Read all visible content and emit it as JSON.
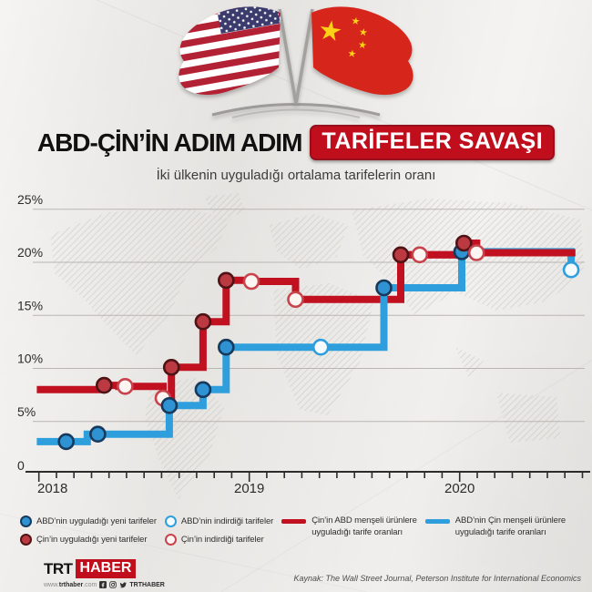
{
  "header": {
    "title_black": "ABD-ÇİN’İN ADIM ADIM",
    "title_highlight": "TARİFELER SAVAŞI",
    "subtitle": "İki ülkenin uyguladığı ortalama tarifelerin oranı",
    "accent_red": "#c00e1d"
  },
  "chart_data": {
    "type": "line",
    "subtype": "step",
    "title": "ABD-ÇİN'İN ADIM ADIM TARİFELER SAVAŞI",
    "subtitle": "İki ülkenin uyguladığı ortalama tarifelerin oranı",
    "y_unit": "%",
    "y_ticks": [
      0,
      5,
      10,
      15,
      20,
      25
    ],
    "x_ticks": [
      2018,
      2019,
      2020
    ],
    "xlim": [
      2017.99,
      2020.62
    ],
    "ylim": [
      0,
      26
    ],
    "grid": true,
    "series": [
      {
        "id": "cn",
        "name": "Çin’in ABD menşeli ürünlere uyguladığı tarife oranları",
        "color": "#c11120",
        "points": [
          [
            2017.99,
            8.0
          ],
          [
            2018.29,
            8.0
          ],
          [
            2018.29,
            8.4
          ],
          [
            2018.38,
            8.4
          ],
          [
            2018.38,
            8.3
          ],
          [
            2018.59,
            8.3
          ],
          [
            2018.59,
            7.2
          ],
          [
            2018.63,
            7.2
          ],
          [
            2018.63,
            10.1
          ],
          [
            2018.78,
            10.1
          ],
          [
            2018.78,
            14.4
          ],
          [
            2018.89,
            14.4
          ],
          [
            2018.89,
            18.3
          ],
          [
            2019.01,
            18.3
          ],
          [
            2019.01,
            18.2
          ],
          [
            2019.22,
            18.2
          ],
          [
            2019.22,
            16.5
          ],
          [
            2019.72,
            16.5
          ],
          [
            2019.72,
            20.7
          ],
          [
            2020.0,
            20.7
          ],
          [
            2020.0,
            21.8
          ],
          [
            2020.08,
            21.8
          ],
          [
            2020.08,
            20.9
          ],
          [
            2020.55,
            20.9
          ]
        ]
      },
      {
        "id": "us",
        "name": "ABD’nin Çin menşeli ürünlere uyguladığı tarife oranları",
        "color": "#2e9fdc",
        "points": [
          [
            2017.99,
            3.1
          ],
          [
            2018.23,
            3.1
          ],
          [
            2018.23,
            3.8
          ],
          [
            2018.62,
            3.8
          ],
          [
            2018.62,
            6.5
          ],
          [
            2018.78,
            6.5
          ],
          [
            2018.78,
            8.0
          ],
          [
            2018.89,
            8.0
          ],
          [
            2018.89,
            12.0
          ],
          [
            2019.64,
            12.0
          ],
          [
            2019.64,
            17.6
          ],
          [
            2020.01,
            17.6
          ],
          [
            2020.01,
            21.0
          ],
          [
            2020.53,
            21.0
          ],
          [
            2020.53,
            19.3
          ]
        ]
      }
    ],
    "marker_styles": {
      "us_new": {
        "fill": "#2f92d2",
        "stroke": "#17395c"
      },
      "us_reduced": {
        "fill": "#f4fafd",
        "stroke": "#2e9fdc"
      },
      "cn_new": {
        "fill": "#bb3a41",
        "stroke": "#4f1316"
      },
      "cn_reduced": {
        "fill": "#fdf5f2",
        "stroke": "#c8434c"
      }
    },
    "markers": [
      {
        "series": "cn",
        "kind": "new",
        "x": 2018.31,
        "y": 8.4
      },
      {
        "series": "cn",
        "kind": "reduced",
        "x": 2018.41,
        "y": 8.3
      },
      {
        "series": "cn",
        "kind": "reduced",
        "x": 2018.59,
        "y": 7.2
      },
      {
        "series": "us",
        "kind": "new",
        "x": 2018.13,
        "y": 3.1
      },
      {
        "series": "us",
        "kind": "new",
        "x": 2018.28,
        "y": 3.8
      },
      {
        "series": "us",
        "kind": "new",
        "x": 2018.62,
        "y": 6.5
      },
      {
        "series": "us",
        "kind": "new",
        "x": 2018.78,
        "y": 8.0
      },
      {
        "series": "us",
        "kind": "new",
        "x": 2018.89,
        "y": 12.0
      },
      {
        "series": "us",
        "kind": "reduced",
        "x": 2019.34,
        "y": 12.0
      },
      {
        "series": "us",
        "kind": "new",
        "x": 2019.64,
        "y": 17.6
      },
      {
        "series": "us",
        "kind": "new",
        "x": 2020.01,
        "y": 21.0
      },
      {
        "series": "us",
        "kind": "reduced",
        "x": 2020.53,
        "y": 19.3
      },
      {
        "series": "cn",
        "kind": "new",
        "x": 2018.63,
        "y": 10.1
      },
      {
        "series": "cn",
        "kind": "new",
        "x": 2018.78,
        "y": 14.4
      },
      {
        "series": "cn",
        "kind": "new",
        "x": 2018.89,
        "y": 18.3
      },
      {
        "series": "cn",
        "kind": "reduced",
        "x": 2019.01,
        "y": 18.2
      },
      {
        "series": "cn",
        "kind": "reduced",
        "x": 2019.22,
        "y": 16.5
      },
      {
        "series": "cn",
        "kind": "new",
        "x": 2019.72,
        "y": 20.7
      },
      {
        "series": "cn",
        "kind": "reduced",
        "x": 2019.81,
        "y": 20.7
      },
      {
        "series": "cn",
        "kind": "new",
        "x": 2020.02,
        "y": 21.8
      },
      {
        "series": "cn",
        "kind": "reduced",
        "x": 2020.08,
        "y": 20.9
      }
    ]
  },
  "legend": {
    "markers": [
      {
        "style": "us_new",
        "label": "ABD’nin uyguladığı yeni tarifeler"
      },
      {
        "style": "us_reduced",
        "label": "ABD’nin indirdiği tarifeler"
      },
      {
        "style": "cn_new",
        "label": "Çin’in uyguladığı yeni tarifeler"
      },
      {
        "style": "cn_reduced",
        "label": "Çin’in indirdiği tarifeler"
      }
    ],
    "lines": [
      {
        "color": "#c11120",
        "label_line1": "Çin’in ABD menşeli ürünlere",
        "label_line2": "uyguladığı tarife oranları"
      },
      {
        "color": "#2e9fdc",
        "label_line1": "ABD’nin Çin menşeli ürünlere",
        "label_line2": "uyguladığı tarife oranları"
      }
    ]
  },
  "footer": {
    "logo_trt": "TRT",
    "logo_haber": "HABER",
    "site_prefix": "www.",
    "site_name": "trthaber",
    "site_suffix": ".com",
    "social_handle": "TRTHABER",
    "source": "Kaynak: The Wall Street Journal, Peterson Institute for International Economics"
  }
}
